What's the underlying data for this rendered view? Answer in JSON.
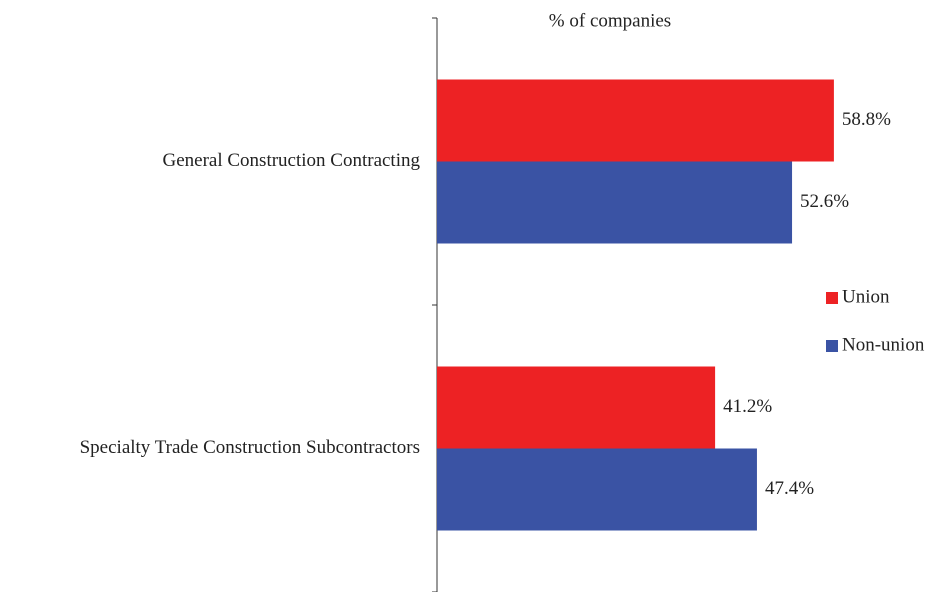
{
  "chart_data": {
    "type": "bar",
    "orientation": "horizontal",
    "title": "% of companies",
    "categories": [
      "General Construction Contracting",
      "Specialty Trade Construction Subcontractors"
    ],
    "series": [
      {
        "name": "Union",
        "color": "#ed2224",
        "values": [
          58.8,
          41.2
        ],
        "value_labels": [
          "58.8%",
          "41.2%"
        ]
      },
      {
        "name": "Non-union",
        "color": "#3a53a4",
        "values": [
          52.6,
          47.4
        ],
        "value_labels": [
          "52.6%",
          "47.4%"
        ]
      }
    ],
    "legend": "right"
  }
}
